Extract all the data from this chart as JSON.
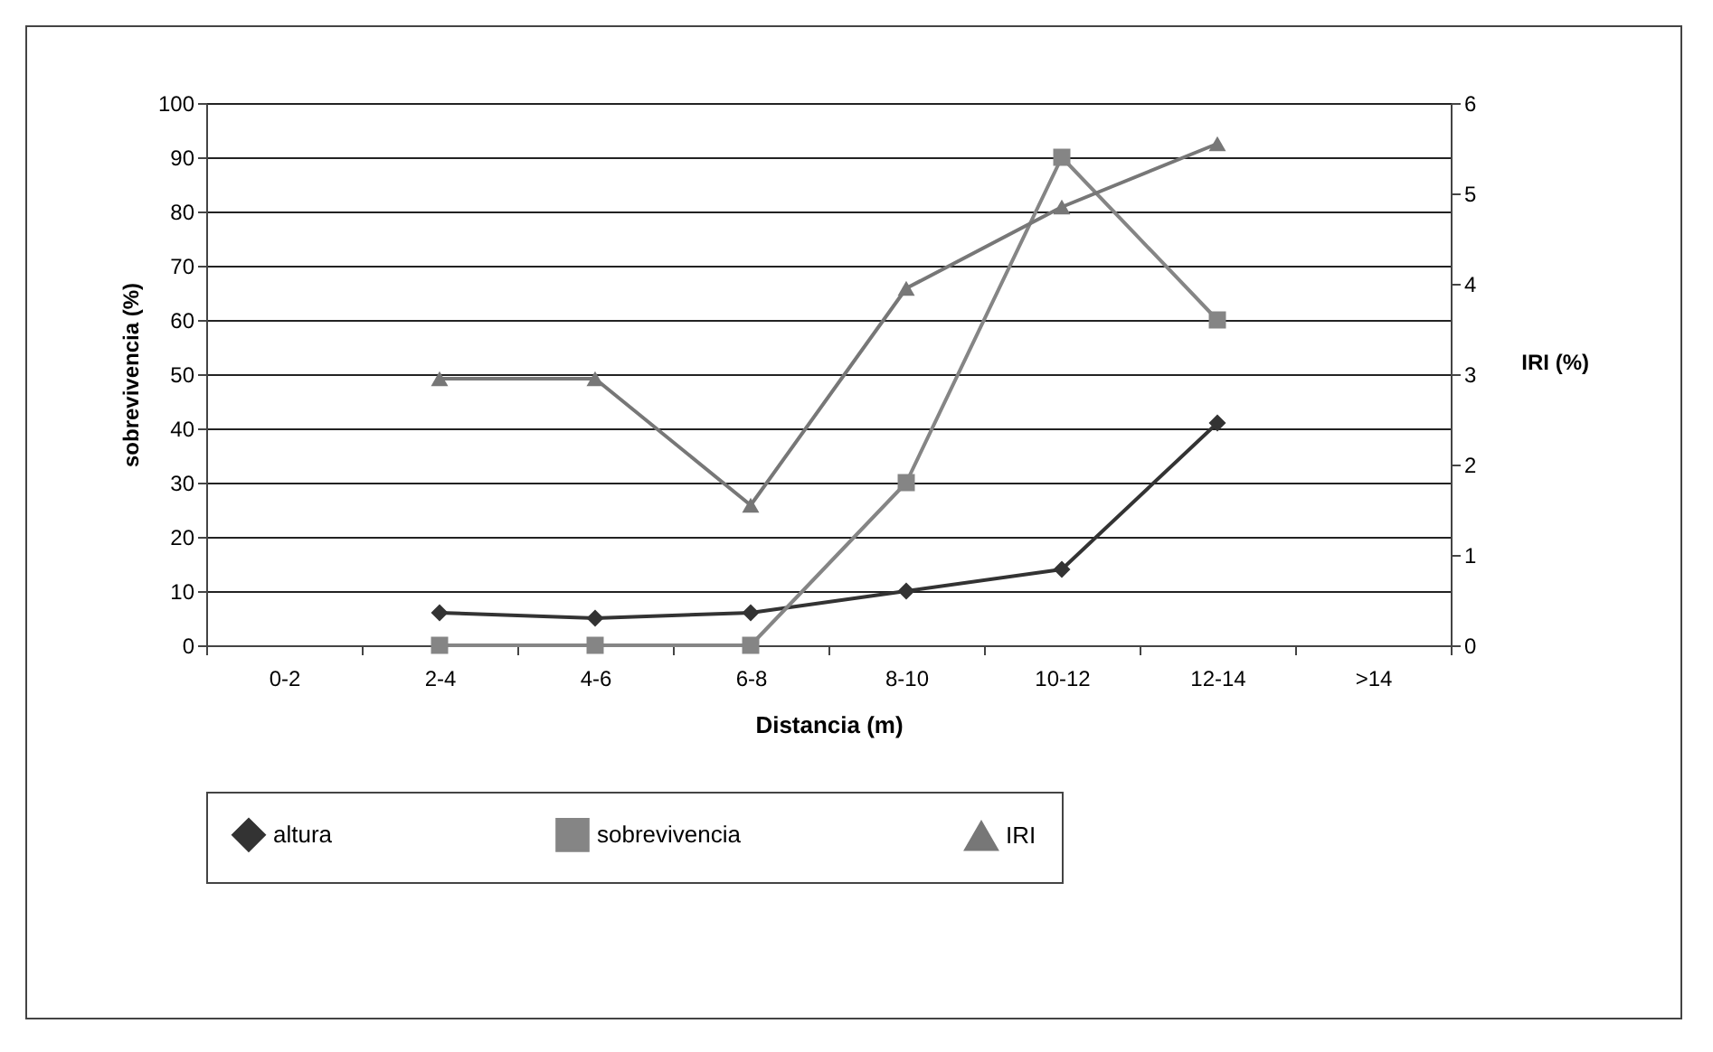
{
  "chart_data": {
    "type": "line",
    "xlabel": "Distancia (m)",
    "ylabel": "sobrevivencia (%)",
    "y2label": "IRI (%)",
    "categories": [
      "0-2",
      "2-4",
      "4-6",
      "6-8",
      "8-10",
      "10-12",
      "12-14",
      ">14"
    ],
    "series": [
      {
        "name": "altura",
        "color": "#333333",
        "marker": "diamond",
        "values": [
          null,
          6,
          5,
          6,
          10,
          14,
          41,
          null
        ]
      },
      {
        "name": "sobrevivencia",
        "color": "#858585",
        "marker": "square",
        "values": [
          null,
          0,
          0,
          0,
          30,
          90,
          60,
          null
        ]
      },
      {
        "name": "IRI",
        "color": "#777777",
        "marker": "triangle",
        "axis": "y2",
        "values": [
          null,
          2.95,
          2.95,
          1.55,
          3.95,
          4.85,
          5.55,
          null
        ]
      }
    ],
    "ylim": [
      0,
      100
    ],
    "yticks": [
      0,
      10,
      20,
      30,
      40,
      50,
      60,
      70,
      80,
      90,
      100
    ],
    "y2lim": [
      0,
      6
    ],
    "y2ticks": [
      0,
      1,
      2,
      3,
      4,
      5,
      6
    ],
    "grid": "y",
    "legend": "bottom"
  }
}
